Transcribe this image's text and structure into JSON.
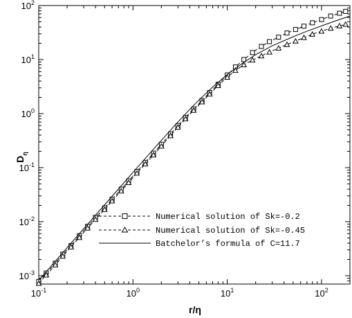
{
  "chart_data": {
    "type": "line",
    "xscale": "log",
    "yscale": "log",
    "xlim": [
      0.1,
      200
    ],
    "ylim": [
      0.0007,
      100
    ],
    "xlabel": "r/η",
    "xlabel_main": "r/",
    "xlabel_symbol": "η",
    "ylabel": "Dη",
    "ylabel_main": "D",
    "ylabel_sub": "η",
    "legend_position": "bottom-right",
    "x_ticks": [
      {
        "base": "10",
        "exp": "-1"
      },
      {
        "base": "10",
        "exp": "0"
      },
      {
        "base": "10",
        "exp": "1"
      },
      {
        "base": "10",
        "exp": "2"
      }
    ],
    "y_ticks": [
      {
        "base": "10",
        "exp": "-3"
      },
      {
        "base": "10",
        "exp": "-2"
      },
      {
        "base": "10",
        "exp": "-1"
      },
      {
        "base": "10",
        "exp": "0"
      },
      {
        "base": "10",
        "exp": "1"
      },
      {
        "base": "10",
        "exp": "2"
      }
    ],
    "series": [
      {
        "name": "Numerical solution of Sk=-0.2",
        "line": "dashed",
        "marker": "square",
        "points": [
          [
            0.1,
            0.00078
          ],
          [
            0.12,
            0.00112
          ],
          [
            0.15,
            0.0017
          ],
          [
            0.18,
            0.0025
          ],
          [
            0.22,
            0.0036
          ],
          [
            0.27,
            0.0055
          ],
          [
            0.33,
            0.0082
          ],
          [
            0.4,
            0.012
          ],
          [
            0.5,
            0.018
          ],
          [
            0.6,
            0.026
          ],
          [
            0.75,
            0.04
          ],
          [
            0.9,
            0.057
          ],
          [
            1.1,
            0.085
          ],
          [
            1.35,
            0.125
          ],
          [
            1.65,
            0.185
          ],
          [
            2.0,
            0.27
          ],
          [
            2.5,
            0.42
          ],
          [
            3.0,
            0.6
          ],
          [
            3.6,
            0.85
          ],
          [
            4.4,
            1.22
          ],
          [
            5.4,
            1.75
          ],
          [
            6.5,
            2.45
          ],
          [
            8.0,
            3.5
          ],
          [
            10.0,
            5.2
          ],
          [
            12.2,
            7.3
          ],
          [
            15.0,
            10.0
          ],
          [
            18.5,
            13.5
          ],
          [
            23.0,
            17.5
          ],
          [
            28.0,
            21.5
          ],
          [
            35.0,
            26.0
          ],
          [
            43.0,
            31.0
          ],
          [
            53.0,
            36.0
          ],
          [
            65.0,
            41.5
          ],
          [
            80.0,
            48.0
          ],
          [
            100.0,
            55.0
          ],
          [
            125.0,
            64.0
          ],
          [
            155.0,
            72.0
          ],
          [
            180.0,
            78.0
          ]
        ]
      },
      {
        "name": "Numerical solution of Sk=-0.45",
        "line": "dashed",
        "marker": "triangle",
        "points": [
          [
            0.1,
            0.00072
          ],
          [
            0.12,
            0.00103
          ],
          [
            0.15,
            0.00158
          ],
          [
            0.18,
            0.0023
          ],
          [
            0.22,
            0.0034
          ],
          [
            0.27,
            0.0051
          ],
          [
            0.33,
            0.0076
          ],
          [
            0.4,
            0.011
          ],
          [
            0.5,
            0.0168
          ],
          [
            0.6,
            0.0242
          ],
          [
            0.75,
            0.037
          ],
          [
            0.9,
            0.053
          ],
          [
            1.1,
            0.079
          ],
          [
            1.35,
            0.117
          ],
          [
            1.65,
            0.172
          ],
          [
            2.0,
            0.25
          ],
          [
            2.5,
            0.39
          ],
          [
            3.0,
            0.56
          ],
          [
            3.6,
            0.8
          ],
          [
            4.4,
            1.15
          ],
          [
            5.4,
            1.65
          ],
          [
            6.5,
            2.3
          ],
          [
            8.0,
            3.3
          ],
          [
            10.0,
            4.7
          ],
          [
            12.2,
            6.3
          ],
          [
            15.0,
            8.0
          ],
          [
            18.5,
            9.8
          ],
          [
            23.0,
            11.7
          ],
          [
            28.0,
            13.8
          ],
          [
            35.0,
            16.3
          ],
          [
            43.0,
            19.0
          ],
          [
            53.0,
            22.0
          ],
          [
            65.0,
            25.5
          ],
          [
            80.0,
            29.5
          ],
          [
            100.0,
            33.5
          ],
          [
            125.0,
            38.0
          ],
          [
            155.0,
            42.0
          ],
          [
            180.0,
            45.0
          ]
        ]
      },
      {
        "name": "Batchelor’s formula of C=11.7",
        "line": "solid",
        "marker": "none",
        "points": [
          [
            0.1,
            0.00082
          ],
          [
            0.15,
            0.00185
          ],
          [
            0.2,
            0.0033
          ],
          [
            0.3,
            0.0074
          ],
          [
            0.5,
            0.0205
          ],
          [
            0.7,
            0.04
          ],
          [
            1.0,
            0.082
          ],
          [
            1.5,
            0.182
          ],
          [
            2.0,
            0.32
          ],
          [
            3.0,
            0.7
          ],
          [
            4.0,
            1.2
          ],
          [
            5.0,
            1.78
          ],
          [
            7.0,
            3.1
          ],
          [
            10.0,
            5.3
          ],
          [
            15.0,
            8.9
          ],
          [
            20.0,
            12.3
          ],
          [
            30.0,
            18.0
          ],
          [
            50.0,
            26.5
          ],
          [
            70.0,
            33.5
          ],
          [
            100.0,
            42.0
          ],
          [
            150.0,
            54.0
          ],
          [
            200.0,
            64.0
          ]
        ]
      }
    ]
  }
}
